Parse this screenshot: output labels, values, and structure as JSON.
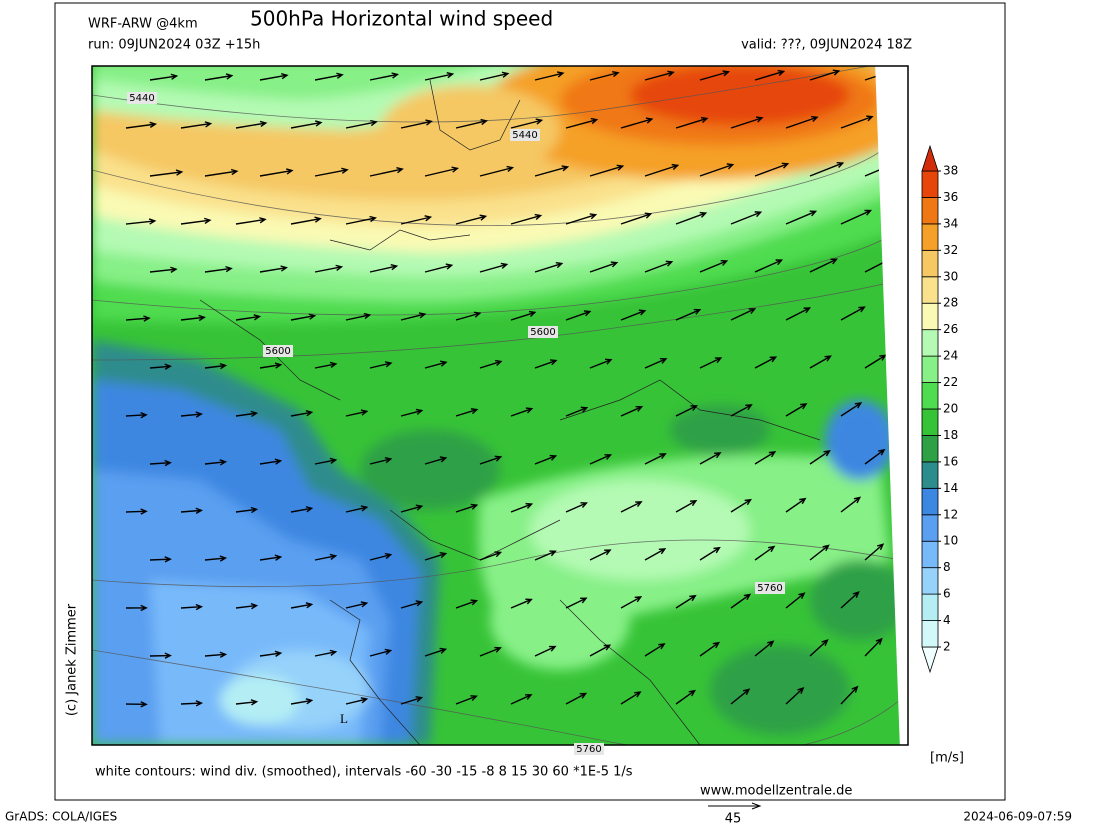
{
  "header": {
    "model": "WRF-ARW @4km",
    "title": "500hPa Horizontal wind speed",
    "run": "run: 09JUN2024 03Z +15h",
    "valid": "valid: ???, 09JUN2024 18Z"
  },
  "map": {
    "contour_labels": [
      "5440",
      "5440",
      "5600",
      "5600",
      "5760",
      "5760"
    ],
    "low_marker": "L"
  },
  "colorbar": {
    "levels": [
      2,
      4,
      6,
      8,
      10,
      12,
      14,
      16,
      18,
      20,
      22,
      24,
      26,
      28,
      30,
      32,
      34,
      36,
      38
    ],
    "colors": [
      "#f0ffff",
      "#d2f8fa",
      "#b4eef4",
      "#96d2fa",
      "#78b9fa",
      "#5a9ff0",
      "#3c87e1",
      "#2d8c8c",
      "#2ea046",
      "#37c337",
      "#50dc50",
      "#87f087",
      "#b4fab4",
      "#fafab4",
      "#fae18c",
      "#f5c864",
      "#f5a028",
      "#f07814",
      "#e6460a",
      "#d22d0a"
    ],
    "unit": "[m/s]"
  },
  "footer": {
    "note": "white contours: wind div. (smoothed), intervals -60 -30 -15 -8 8 15 30 60 *1E-5 1/s",
    "website": "www.modellzentrale.de",
    "credit": "(c) Janek Zimmer",
    "grads": "GrADS: COLA/IGES",
    "timestamp": "2024-06-09-07:59",
    "reference_vector": "45"
  }
}
